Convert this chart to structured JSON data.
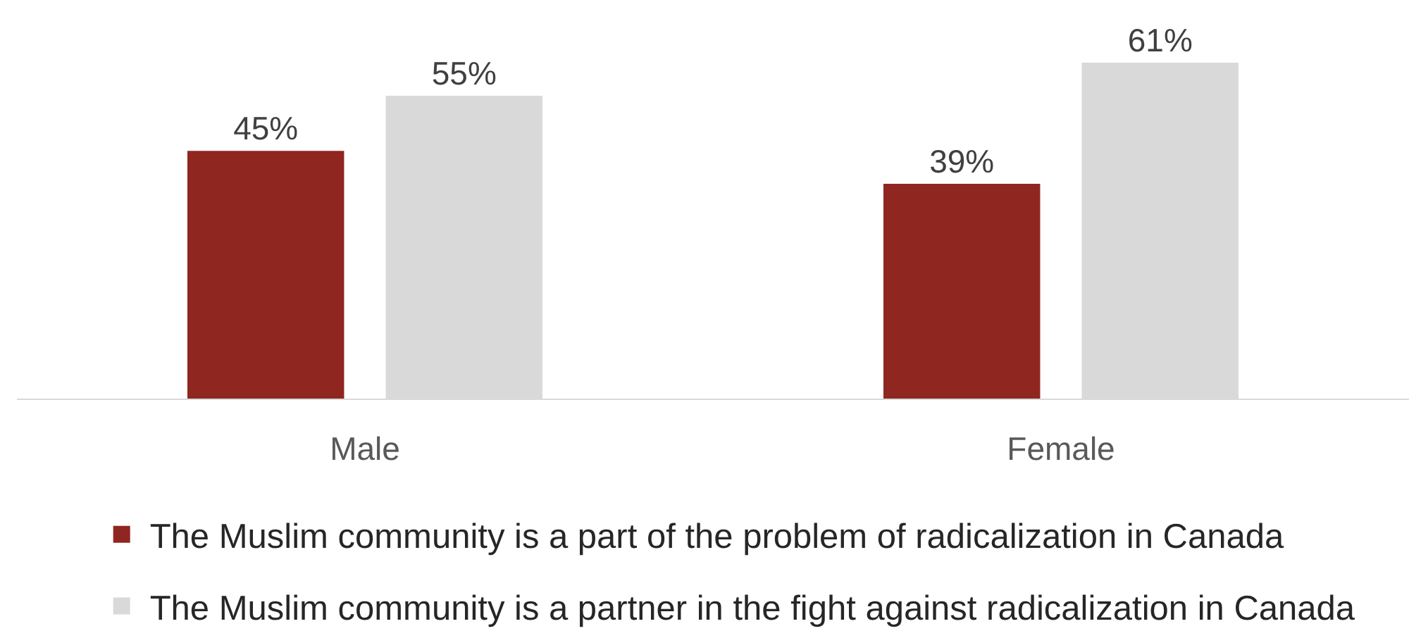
{
  "chart_data": {
    "type": "bar",
    "categories": [
      "Male",
      "Female"
    ],
    "series": [
      {
        "name": "The Muslim community is a part of the problem of radicalization in Canada",
        "color": "#8f2620",
        "values": [
          45,
          39
        ],
        "value_labels": [
          "45%",
          "39%"
        ]
      },
      {
        "name": "The Muslim community is a partner in the fight against radicalization in Canada",
        "color": "#d9d9d9",
        "values": [
          55,
          61
        ],
        "value_labels": [
          "55%",
          "61%"
        ]
      }
    ],
    "tick_labels": "x",
    "legend": "bottom"
  }
}
